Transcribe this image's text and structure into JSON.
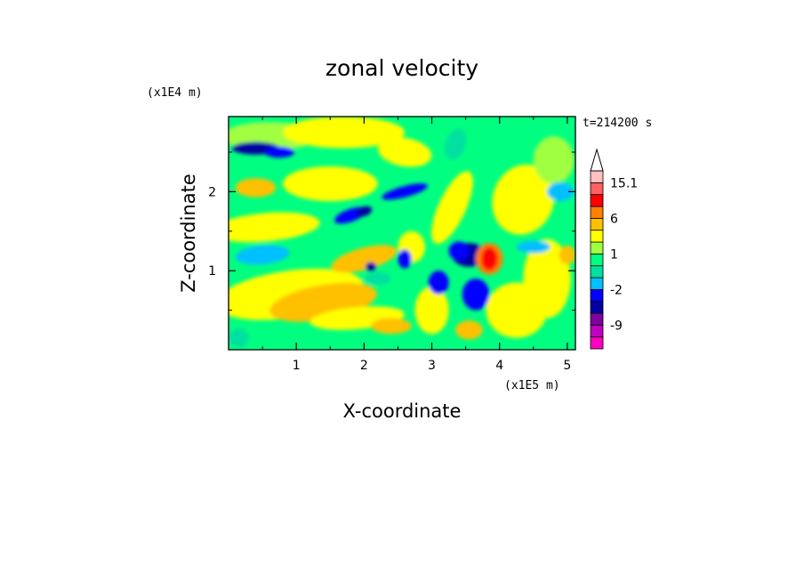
{
  "chart_data": {
    "type": "heatmap",
    "title": "zonal velocity",
    "xlabel": "X-coordinate",
    "ylabel": "Z-coordinate",
    "x_unit": "(x1E5 m)",
    "y_unit": "(x1E4 m)",
    "time_label": "t=214200 s",
    "x_ticks": [
      "1",
      "2",
      "3",
      "4",
      "5"
    ],
    "x_tick_values": [
      1,
      2,
      3,
      4,
      5
    ],
    "y_ticks": [
      "1",
      "2"
    ],
    "y_tick_values": [
      1,
      2
    ],
    "xlim": [
      0,
      5.12
    ],
    "ylim": [
      0,
      2.95
    ],
    "colorbar": {
      "labels": [
        "15.1",
        "6",
        "1",
        "-2",
        "-9"
      ],
      "label_values": [
        15.1,
        6,
        1,
        -2,
        -9
      ],
      "levels": [
        -16,
        -12,
        -9,
        -6,
        -3,
        -2,
        -1,
        0,
        1,
        2,
        3,
        6,
        9,
        12,
        15.1,
        18
      ],
      "colors": [
        "#ff00c0",
        "#c000c0",
        "#8000a0",
        "#0000a0",
        "#0000ff",
        "#00c0ff",
        "#00e0a0",
        "#00ff80",
        "#a0ff40",
        "#ffff00",
        "#ffc000",
        "#ff8000",
        "#ff0000",
        "#ff6060",
        "#ffc0c0"
      ]
    }
  }
}
